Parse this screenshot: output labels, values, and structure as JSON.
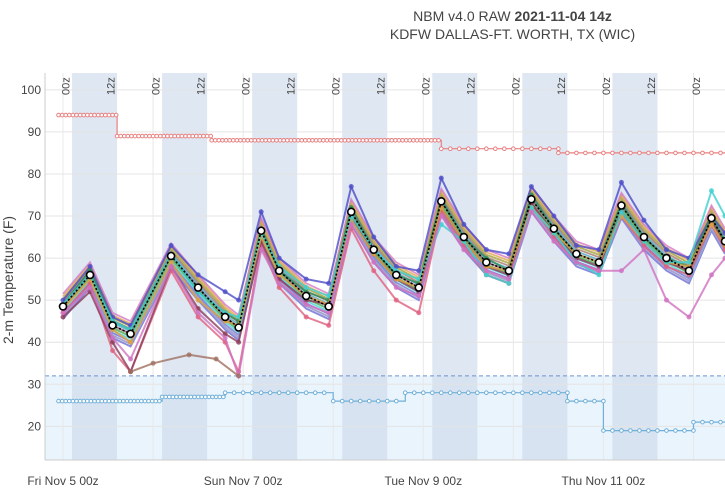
{
  "title": {
    "prefix": "NBM v4.0 RAW ",
    "run": "2021-11-04 14z",
    "station": "KDFW DALLAS-FT. WORTH, TX (WIC)"
  },
  "chart_data": {
    "type": "line",
    "ylabel": "2-m Temperature (F)",
    "ylim": [
      12,
      104
    ],
    "yticks": [
      20,
      30,
      40,
      50,
      60,
      70,
      80,
      90,
      100
    ],
    "xlim": [
      -0.2,
      7.35
    ],
    "x_unit": "days since Fri Nov 5 00z",
    "xticks": [
      {
        "x": 0,
        "label": "Fri Nov  5 00z"
      },
      {
        "x": 2,
        "label": "Sun Nov  7 00z"
      },
      {
        "x": 4,
        "label": "Tue Nov  9 00z"
      },
      {
        "x": 6,
        "label": "Thu Nov 11 00z"
      }
    ],
    "hour_labels": [
      {
        "x": -0.04,
        "label": "00z"
      },
      {
        "x": 0.46,
        "label": "12z"
      },
      {
        "x": 0.96,
        "label": "00z"
      },
      {
        "x": 1.46,
        "label": "12z"
      },
      {
        "x": 1.96,
        "label": "00z"
      },
      {
        "x": 2.46,
        "label": "12z"
      },
      {
        "x": 2.96,
        "label": "00z"
      },
      {
        "x": 3.46,
        "label": "12z"
      },
      {
        "x": 3.96,
        "label": "00z"
      },
      {
        "x": 4.46,
        "label": "12z"
      },
      {
        "x": 4.96,
        "label": "00z"
      },
      {
        "x": 5.46,
        "label": "12z"
      },
      {
        "x": 5.96,
        "label": "00z"
      },
      {
        "x": 6.46,
        "label": "12z"
      },
      {
        "x": 6.96,
        "label": "00z"
      }
    ],
    "night_bands": [
      [
        0.1,
        0.6
      ],
      [
        1.1,
        1.6
      ],
      [
        2.1,
        2.6
      ],
      [
        3.1,
        3.6
      ],
      [
        4.1,
        4.6
      ],
      [
        5.1,
        5.6
      ],
      [
        6.1,
        6.6
      ]
    ],
    "freezing_line": 32,
    "record_high_steps": [
      [
        -0.05,
        94
      ],
      [
        0.6,
        94
      ],
      [
        0.6,
        89
      ],
      [
        1.65,
        89
      ],
      [
        1.65,
        88
      ],
      [
        4.2,
        88
      ],
      [
        4.2,
        86
      ],
      [
        5.5,
        86
      ],
      [
        5.5,
        85
      ],
      [
        7.35,
        85
      ]
    ],
    "record_low_steps": [
      [
        -0.05,
        26
      ],
      [
        1.1,
        26
      ],
      [
        1.1,
        27
      ],
      [
        1.8,
        27
      ],
      [
        1.8,
        28
      ],
      [
        3.0,
        28
      ],
      [
        3.0,
        26
      ],
      [
        3.8,
        26
      ],
      [
        3.8,
        28
      ],
      [
        5.6,
        28
      ],
      [
        5.6,
        26
      ],
      [
        6.0,
        26
      ],
      [
        6.0,
        19
      ],
      [
        7.0,
        19
      ],
      [
        7.0,
        21
      ],
      [
        7.35,
        21
      ]
    ],
    "series_colors": [
      "#4c4cc8",
      "#2e8b57",
      "#5aa05a",
      "#e06080",
      "#8c3c5a",
      "#e0a040",
      "#6a6ad0",
      "#4aa0c0",
      "#d070c0",
      "#40d0d0",
      "#a07060",
      "#9090e0",
      "#6fbf6f",
      "#c8b050",
      "#8ab0e0"
    ],
    "series": [
      {
        "color": "#000000",
        "points": [
          [
            0,
            48.5
          ],
          [
            0.3,
            56
          ],
          [
            0.55,
            44
          ],
          [
            0.75,
            42
          ],
          [
            1.2,
            60.5
          ],
          [
            1.5,
            53
          ],
          [
            1.8,
            46
          ],
          [
            1.95,
            43.5
          ],
          [
            2.2,
            66.5
          ],
          [
            2.4,
            57
          ],
          [
            2.7,
            51
          ],
          [
            2.95,
            48.5
          ],
          [
            3.2,
            71
          ],
          [
            3.45,
            62
          ],
          [
            3.7,
            56
          ],
          [
            3.95,
            53
          ],
          [
            4.2,
            73.5
          ],
          [
            4.45,
            65
          ],
          [
            4.7,
            59
          ],
          [
            4.95,
            57
          ],
          [
            5.2,
            74
          ],
          [
            5.45,
            67
          ],
          [
            5.7,
            61
          ],
          [
            5.95,
            59
          ],
          [
            6.2,
            72.5
          ],
          [
            6.45,
            65
          ],
          [
            6.7,
            60
          ],
          [
            6.95,
            57
          ],
          [
            7.2,
            69.5
          ],
          [
            7.35,
            64
          ]
        ]
      },
      {
        "color": "#4c4cc8",
        "points": [
          [
            0,
            50
          ],
          [
            0.3,
            58
          ],
          [
            0.55,
            46
          ],
          [
            0.75,
            44
          ],
          [
            1.2,
            63
          ],
          [
            1.5,
            56
          ],
          [
            1.8,
            52
          ],
          [
            1.95,
            50
          ],
          [
            2.2,
            71
          ],
          [
            2.4,
            60
          ],
          [
            2.7,
            55
          ],
          [
            2.95,
            54
          ],
          [
            3.2,
            77
          ],
          [
            3.45,
            65
          ],
          [
            3.7,
            58
          ],
          [
            3.95,
            57
          ],
          [
            4.2,
            79
          ],
          [
            4.45,
            68
          ],
          [
            4.7,
            62
          ],
          [
            4.95,
            61
          ],
          [
            5.2,
            77
          ],
          [
            5.45,
            70
          ],
          [
            5.7,
            63
          ],
          [
            5.95,
            62
          ],
          [
            6.2,
            78
          ],
          [
            6.45,
            69
          ],
          [
            6.7,
            62
          ],
          [
            6.95,
            60
          ],
          [
            7.2,
            70
          ],
          [
            7.35,
            66
          ]
        ]
      },
      {
        "color": "#e06080",
        "points": [
          [
            0,
            47
          ],
          [
            0.3,
            54
          ],
          [
            0.55,
            38
          ],
          [
            0.75,
            33
          ],
          [
            1.2,
            57
          ],
          [
            1.5,
            46
          ],
          [
            1.8,
            40
          ],
          [
            1.95,
            33
          ],
          [
            2.2,
            63
          ],
          [
            2.4,
            53
          ],
          [
            2.7,
            46
          ],
          [
            2.95,
            44
          ],
          [
            3.2,
            67
          ],
          [
            3.45,
            57
          ],
          [
            3.7,
            50
          ],
          [
            3.95,
            47
          ],
          [
            4.2,
            71
          ],
          [
            4.45,
            63
          ],
          [
            4.7,
            56
          ],
          [
            4.95,
            54
          ],
          [
            5.2,
            73
          ],
          [
            5.45,
            65
          ],
          [
            5.7,
            59
          ],
          [
            5.95,
            57
          ],
          [
            6.2,
            70
          ],
          [
            6.45,
            63
          ],
          [
            6.7,
            58
          ],
          [
            6.95,
            56
          ],
          [
            7.2,
            68
          ],
          [
            7.35,
            62
          ]
        ]
      },
      {
        "color": "#8c3c5a",
        "points": [
          [
            0,
            46
          ],
          [
            0.3,
            52
          ],
          [
            0.55,
            40
          ],
          [
            0.75,
            33
          ],
          [
            1.2,
            58
          ],
          [
            1.5,
            48
          ],
          [
            1.8,
            42
          ],
          [
            1.95,
            40
          ],
          [
            2.2,
            64
          ],
          [
            2.4,
            55
          ],
          [
            2.7,
            50
          ],
          [
            2.95,
            49
          ],
          [
            3.2,
            70
          ],
          [
            3.45,
            61
          ],
          [
            3.7,
            55
          ],
          [
            3.95,
            52
          ],
          [
            4.2,
            72
          ],
          [
            4.45,
            64
          ],
          [
            4.7,
            58
          ],
          [
            4.95,
            56
          ],
          [
            5.2,
            73
          ],
          [
            5.45,
            66
          ],
          [
            5.7,
            60
          ],
          [
            5.95,
            58
          ],
          [
            6.2,
            71
          ],
          [
            6.45,
            64
          ],
          [
            6.7,
            59
          ],
          [
            6.95,
            57
          ],
          [
            7.2,
            69
          ],
          [
            7.35,
            63
          ]
        ]
      },
      {
        "color": "#2e8b57",
        "points": [
          [
            0,
            49
          ],
          [
            0.3,
            57
          ],
          [
            0.55,
            45
          ],
          [
            0.75,
            43
          ],
          [
            1.2,
            61
          ],
          [
            1.5,
            52
          ],
          [
            1.8,
            47
          ],
          [
            1.95,
            45
          ],
          [
            2.2,
            67
          ],
          [
            2.4,
            57
          ],
          [
            2.7,
            52
          ],
          [
            2.95,
            50
          ],
          [
            3.2,
            72
          ],
          [
            3.45,
            62
          ],
          [
            3.7,
            56
          ],
          [
            3.95,
            54
          ],
          [
            4.2,
            74
          ],
          [
            4.45,
            65
          ],
          [
            4.7,
            60
          ],
          [
            4.95,
            57
          ],
          [
            5.2,
            75
          ],
          [
            5.45,
            67
          ],
          [
            5.7,
            61
          ],
          [
            5.95,
            59
          ],
          [
            6.2,
            73
          ],
          [
            6.45,
            65
          ],
          [
            6.7,
            60
          ],
          [
            6.95,
            58
          ],
          [
            7.2,
            70
          ],
          [
            7.35,
            64
          ]
        ]
      },
      {
        "color": "#e0a040",
        "points": [
          [
            0,
            48
          ],
          [
            0.3,
            55
          ],
          [
            0.55,
            43
          ],
          [
            0.75,
            40
          ],
          [
            1.2,
            59
          ],
          [
            1.5,
            50
          ],
          [
            1.8,
            45
          ],
          [
            1.95,
            44
          ],
          [
            2.2,
            65
          ],
          [
            2.4,
            56
          ],
          [
            2.7,
            51
          ],
          [
            2.95,
            49
          ],
          [
            3.2,
            69
          ],
          [
            3.45,
            61
          ],
          [
            3.7,
            55
          ],
          [
            3.95,
            53
          ],
          [
            4.2,
            72
          ],
          [
            4.45,
            64
          ],
          [
            4.7,
            58
          ],
          [
            4.95,
            57
          ],
          [
            5.2,
            72
          ],
          [
            5.45,
            66
          ],
          [
            5.7,
            61
          ],
          [
            5.95,
            59
          ],
          [
            6.2,
            70
          ],
          [
            6.45,
            64
          ],
          [
            6.7,
            59
          ],
          [
            6.95,
            58
          ],
          [
            7.2,
            68
          ],
          [
            7.35,
            63
          ]
        ]
      },
      {
        "color": "#40d0d0",
        "points": [
          [
            0,
            49
          ],
          [
            0.3,
            56
          ],
          [
            0.55,
            45
          ],
          [
            0.75,
            43
          ],
          [
            1.2,
            61
          ],
          [
            1.5,
            52
          ],
          [
            1.8,
            47
          ],
          [
            1.95,
            46
          ],
          [
            2.2,
            66
          ],
          [
            2.4,
            58
          ],
          [
            2.7,
            53
          ],
          [
            2.95,
            51
          ],
          [
            3.2,
            70
          ],
          [
            3.45,
            62
          ],
          [
            3.7,
            57
          ],
          [
            3.95,
            55
          ],
          [
            4.2,
            68
          ],
          [
            4.45,
            64
          ],
          [
            4.7,
            56
          ],
          [
            4.95,
            54
          ],
          [
            5.2,
            72
          ],
          [
            5.45,
            66
          ],
          [
            5.7,
            59
          ],
          [
            5.95,
            56
          ],
          [
            6.2,
            71
          ],
          [
            6.45,
            64
          ],
          [
            6.7,
            59
          ],
          [
            6.95,
            59
          ],
          [
            7.2,
            76
          ],
          [
            7.35,
            70
          ]
        ]
      },
      {
        "color": "#d070c0",
        "points": [
          [
            0,
            47
          ],
          [
            0.3,
            53
          ],
          [
            0.55,
            41
          ],
          [
            0.75,
            36
          ],
          [
            1.2,
            58
          ],
          [
            1.5,
            47
          ],
          [
            1.8,
            41
          ],
          [
            1.95,
            32
          ],
          [
            2.2,
            62
          ],
          [
            2.4,
            54
          ],
          [
            2.7,
            49
          ],
          [
            2.95,
            47
          ],
          [
            3.2,
            68
          ],
          [
            3.45,
            59
          ],
          [
            3.7,
            53
          ],
          [
            3.95,
            51
          ],
          [
            4.2,
            70
          ],
          [
            4.45,
            62
          ],
          [
            4.7,
            57
          ],
          [
            4.95,
            55
          ],
          [
            5.2,
            71
          ],
          [
            5.45,
            64
          ],
          [
            5.7,
            59
          ],
          [
            5.95,
            57
          ],
          [
            6.2,
            57
          ],
          [
            6.45,
            62
          ],
          [
            6.7,
            50
          ],
          [
            6.95,
            46
          ],
          [
            7.2,
            56
          ],
          [
            7.35,
            60
          ]
        ]
      },
      {
        "color": "#a07060",
        "points": [
          [
            0.75,
            33
          ],
          [
            1.0,
            35
          ],
          [
            1.4,
            37
          ],
          [
            1.7,
            36
          ],
          [
            1.95,
            32
          ]
        ]
      }
    ]
  }
}
